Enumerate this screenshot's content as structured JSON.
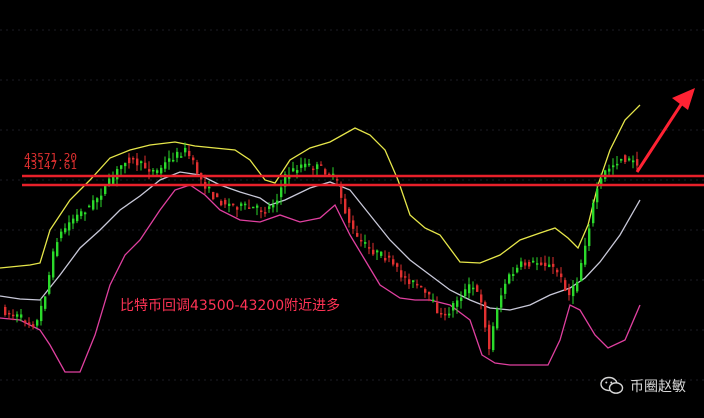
{
  "chart_data": {
    "type": "candlestick",
    "indicator": "Bollinger Bands",
    "levels": [
      {
        "name": "upper",
        "value": 43571.2,
        "label": "43571.20"
      },
      {
        "name": "lower",
        "value": 43147.61,
        "label": "43147.61"
      }
    ],
    "annotation": "比特币回调43500-43200附近进多",
    "colors": {
      "background": "#000000",
      "up": "#2bd92b",
      "down": "#e03030",
      "upper_band": "#e6e64a",
      "middle_band": "#c8c8d8",
      "lower_band": "#e040a0",
      "level_line": "#e8202a",
      "arrow": "#ff2233"
    }
  },
  "watermark": {
    "icon": "wechat-icon",
    "text": "币圈赵敏"
  }
}
